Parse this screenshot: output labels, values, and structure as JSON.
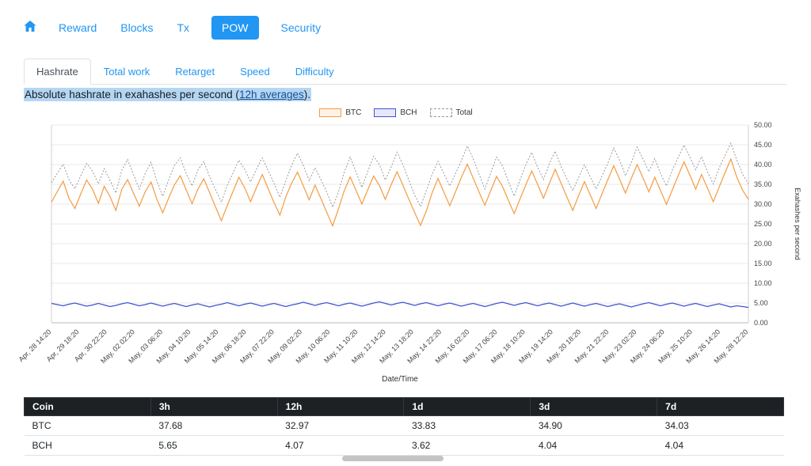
{
  "nav": {
    "items": [
      {
        "label": "Reward",
        "active": false
      },
      {
        "label": "Blocks",
        "active": false
      },
      {
        "label": "Tx",
        "active": false
      },
      {
        "label": "POW",
        "active": true
      },
      {
        "label": "Security",
        "active": false
      }
    ]
  },
  "tabs": [
    {
      "label": "Hashrate",
      "active": true
    },
    {
      "label": "Total work",
      "active": false
    },
    {
      "label": "Retarget",
      "active": false
    },
    {
      "label": "Speed",
      "active": false
    },
    {
      "label": "Difficulty",
      "active": false
    }
  ],
  "description": {
    "text_before_link": "Absolute hashrate in exahashes per second (",
    "link_text": "12h averages",
    "text_after_link": ")."
  },
  "colors": {
    "link_blue": "#2196f3",
    "btc_line": "#f59b42",
    "bch_line": "#4053d3",
    "total_line": "#9a9a9a",
    "highlight": "#b3d6f5",
    "table_header_bg": "#1d2124"
  },
  "chart_data": {
    "type": "line",
    "title": "",
    "xlabel": "Date/Time",
    "ylabel": "Exahashes per second",
    "ylim": [
      0,
      50
    ],
    "y_tick_step": 5,
    "y_axis_side": "right",
    "grid": true,
    "legend_position": "top",
    "legend": [
      {
        "name": "BTC",
        "color": "#f59b42",
        "style": "solid"
      },
      {
        "name": "BCH",
        "color": "#4053d3",
        "style": "solid"
      },
      {
        "name": "Total",
        "color": "#9a9a9a",
        "style": "dotted"
      }
    ],
    "x_tick_labels": [
      "Apr, 28 14:20",
      "Apr, 29 18:20",
      "Apr, 30 22:20",
      "May, 02 02:20",
      "May, 03 06:20",
      "May, 04 10:20",
      "May, 05 14:20",
      "May, 06 18:20",
      "May, 07 22:20",
      "May, 09 02:20",
      "May, 10 06:20",
      "May, 11 10:20",
      "May, 12 14:20",
      "May, 13 18:20",
      "May, 14 22:20",
      "May, 16 02:20",
      "May, 17 06:20",
      "May, 18 10:20",
      "May, 19 14:20",
      "May, 20 18:20",
      "May, 21 22:20",
      "May, 23 02:20",
      "May, 24 06:20",
      "May, 25 10:20",
      "May, 26 14:20",
      "May, 28 12:20"
    ],
    "series": [
      {
        "name": "BTC",
        "color": "#f59b42",
        "values": [
          30.5,
          33.2,
          35.8,
          31.4,
          28.9,
          32.6,
          36.1,
          33.8,
          30.2,
          34.5,
          31.9,
          28.4,
          33.7,
          36.2,
          32.8,
          29.5,
          33.1,
          35.6,
          31.2,
          27.8,
          31.5,
          34.9,
          37.2,
          33.6,
          30.1,
          33.8,
          36.4,
          32.9,
          29.3,
          25.8,
          29.6,
          33.2,
          36.8,
          34.1,
          30.6,
          34.2,
          37.5,
          33.9,
          30.4,
          27.2,
          31.8,
          35.3,
          38.1,
          34.6,
          31.1,
          34.8,
          31.4,
          27.9,
          24.5,
          28.8,
          33.4,
          36.9,
          33.5,
          30.0,
          33.6,
          37.1,
          34.7,
          31.2,
          34.9,
          38.2,
          34.8,
          31.3,
          27.9,
          24.6,
          28.3,
          32.9,
          36.5,
          33.0,
          29.6,
          33.2,
          36.8,
          40.1,
          36.6,
          33.1,
          29.7,
          33.4,
          37.0,
          34.5,
          31.0,
          27.6,
          31.3,
          34.9,
          38.4,
          35.0,
          31.5,
          35.2,
          38.8,
          35.3,
          31.8,
          28.4,
          32.1,
          35.7,
          32.3,
          28.9,
          32.6,
          36.2,
          39.7,
          36.3,
          32.8,
          36.5,
          40.0,
          36.6,
          33.1,
          36.8,
          33.4,
          29.9,
          33.6,
          37.2,
          40.7,
          37.3,
          33.8,
          37.5,
          34.1,
          30.6,
          34.3,
          37.9,
          41.4,
          36.9,
          33.5,
          31.2
        ]
      },
      {
        "name": "BCH",
        "color": "#4053d3",
        "values": [
          4.9,
          4.6,
          4.3,
          4.7,
          5.0,
          4.6,
          4.2,
          4.5,
          4.9,
          4.5,
          4.1,
          4.4,
          4.8,
          5.1,
          4.7,
          4.3,
          4.6,
          5.0,
          4.6,
          4.2,
          4.6,
          4.9,
          4.5,
          4.1,
          4.5,
          4.8,
          4.4,
          4.0,
          4.4,
          4.7,
          5.1,
          4.7,
          4.3,
          4.7,
          5.0,
          4.6,
          4.2,
          4.6,
          4.9,
          4.5,
          4.1,
          4.5,
          4.8,
          5.2,
          4.8,
          4.4,
          4.8,
          5.1,
          4.7,
          4.3,
          4.7,
          5.0,
          4.6,
          4.2,
          4.6,
          5.0,
          5.3,
          4.9,
          4.5,
          4.9,
          5.2,
          4.8,
          4.4,
          4.8,
          5.1,
          4.7,
          4.3,
          4.7,
          5.0,
          4.6,
          4.2,
          4.6,
          4.9,
          4.5,
          4.1,
          4.5,
          4.9,
          5.2,
          4.8,
          4.4,
          4.8,
          5.1,
          4.7,
          4.3,
          4.7,
          5.0,
          4.6,
          4.2,
          4.6,
          5.0,
          4.6,
          4.2,
          4.6,
          4.9,
          4.5,
          4.1,
          4.5,
          4.8,
          4.4,
          4.0,
          4.4,
          4.8,
          5.1,
          4.7,
          4.3,
          4.7,
          5.0,
          4.6,
          4.2,
          4.6,
          4.9,
          4.5,
          4.1,
          4.5,
          4.8,
          4.4,
          4.0,
          4.3,
          4.1,
          3.9
        ]
      },
      {
        "name": "Total",
        "color": "#9a9a9a",
        "style": "dotted",
        "derived": "BTC + BCH"
      }
    ]
  },
  "table": {
    "columns": [
      "Coin",
      "3h",
      "12h",
      "1d",
      "3d",
      "7d"
    ],
    "rows": [
      {
        "coin": "BTC",
        "values": [
          "37.68",
          "32.97",
          "33.83",
          "34.90",
          "34.03"
        ]
      },
      {
        "coin": "BCH",
        "values": [
          "5.65",
          "4.07",
          "3.62",
          "4.04",
          "4.04"
        ]
      }
    ]
  }
}
